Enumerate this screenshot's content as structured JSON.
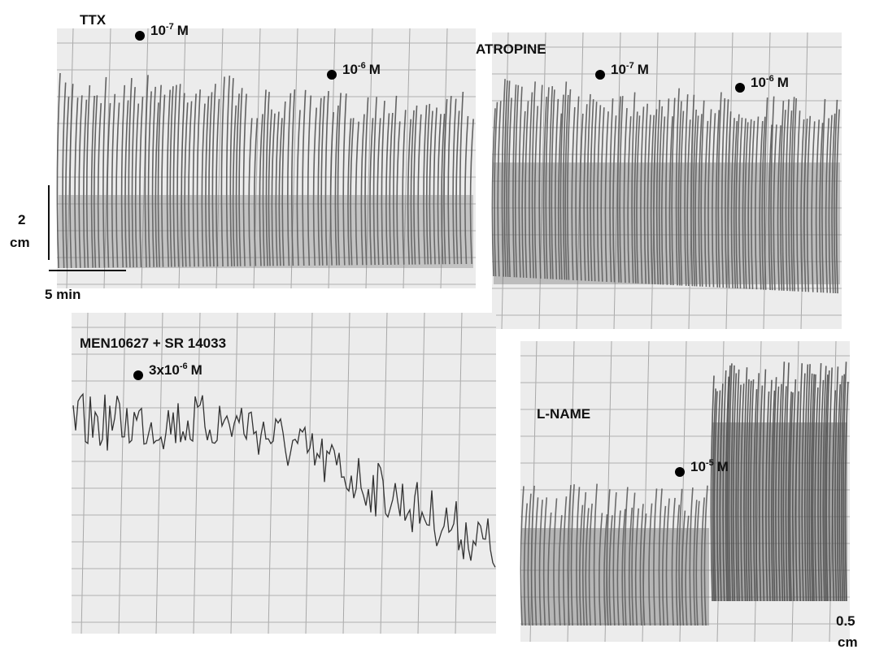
{
  "panels": [
    {
      "title": "TTX",
      "doses": [
        {
          "base": "10",
          "exp": "-7",
          "unit": "M"
        },
        {
          "base": "10",
          "exp": "-6",
          "unit": "M"
        }
      ]
    },
    {
      "title": "ATROPINE",
      "doses": [
        {
          "base": "10",
          "exp": "-7",
          "unit": "M"
        },
        {
          "base": "10",
          "exp": "-6",
          "unit": "M"
        }
      ]
    },
    {
      "title": "MEN10627 + SR 14033",
      "doses": [
        {
          "base": "3x10",
          "exp": "-6",
          "unit": "M"
        }
      ]
    },
    {
      "title": "L-NAME",
      "doses": [
        {
          "base": "10",
          "exp": "-5",
          "unit": "M"
        }
      ]
    }
  ],
  "scale_bars": {
    "vertical": {
      "value": "2",
      "unit": "cm"
    },
    "horizontal": "5 min",
    "right": {
      "value": "0.5",
      "unit": "cm"
    }
  }
}
